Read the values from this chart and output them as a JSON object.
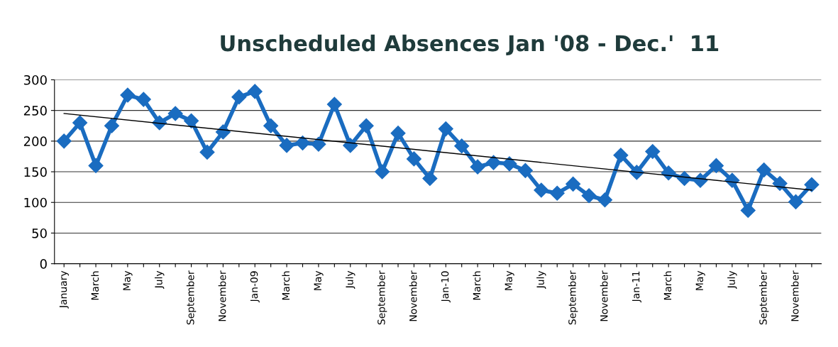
{
  "chart_data": {
    "type": "line",
    "title": "Unscheduled Absences Jan '08 - Dec.'  11",
    "categories": [
      "January",
      null,
      "March",
      null,
      "May",
      null,
      "July",
      null,
      "September",
      null,
      "November",
      null,
      "Jan-09",
      null,
      "March",
      null,
      "May",
      null,
      "July",
      null,
      "September",
      null,
      "November",
      null,
      "Jan-10",
      null,
      "March",
      null,
      "May",
      null,
      "July",
      null,
      "September",
      null,
      "November",
      null,
      "Jan-11",
      null,
      "March",
      null,
      "May",
      null,
      "July",
      null,
      "September",
      null,
      "November",
      null
    ],
    "series": [
      {
        "color": "#1a6cc0",
        "marker": "diamond",
        "values": [
          200,
          230,
          160,
          225,
          275,
          268,
          230,
          245,
          233,
          182,
          215,
          272,
          281,
          225,
          193,
          197,
          195,
          260,
          193,
          225,
          150,
          213,
          171,
          139,
          220,
          192,
          158,
          165,
          163,
          152,
          120,
          115,
          130,
          111,
          104,
          177,
          149,
          183,
          148,
          139,
          136,
          160,
          136,
          87,
          153,
          131,
          101,
          129
        ]
      },
      {
        "type": "line",
        "color": "#000000",
        "marker": "none",
        "values": [
          245,
          null,
          null,
          null,
          null,
          null,
          null,
          null,
          null,
          null,
          null,
          null,
          null,
          null,
          null,
          null,
          null,
          null,
          null,
          null,
          null,
          null,
          null,
          null,
          null,
          null,
          null,
          null,
          null,
          null,
          null,
          null,
          null,
          null,
          null,
          null,
          null,
          null,
          null,
          null,
          null,
          null,
          null,
          null,
          null,
          null,
          null,
          120
        ]
      }
    ],
    "ylim": [
      0,
      300
    ],
    "yticks": [
      0,
      50,
      100,
      150,
      200,
      250,
      300
    ],
    "grid": "y",
    "legend": false
  }
}
